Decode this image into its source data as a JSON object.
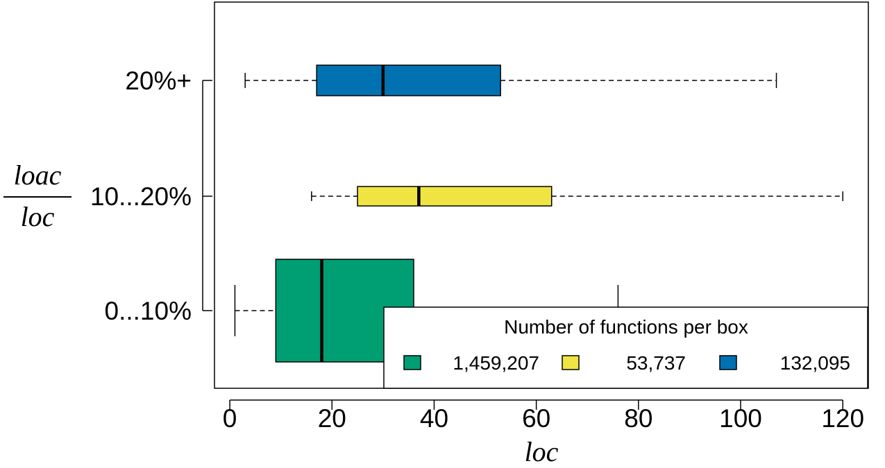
{
  "chart_data": {
    "type": "boxplot",
    "orientation": "horizontal",
    "xlabel": "loc",
    "ylabel_numerator": "loac",
    "ylabel_denominator": "loc",
    "xlim": [
      -3,
      125
    ],
    "xticks": [
      0,
      20,
      40,
      60,
      80,
      100,
      120
    ],
    "categories": [
      "0...10%",
      "10...20%",
      "20%+"
    ],
    "series": [
      {
        "category": "0...10%",
        "whisker_low": 1,
        "q1": 9,
        "median": 18,
        "q3": 36,
        "whisker_high": 76,
        "count": "1,459,207",
        "color": "#009E73"
      },
      {
        "category": "10...20%",
        "whisker_low": 16,
        "q1": 25,
        "median": 37,
        "q3": 63,
        "whisker_high": 120,
        "count": "53,737",
        "color": "#F0E442"
      },
      {
        "category": "20%+",
        "whisker_low": 3,
        "q1": 17,
        "median": 30,
        "q3": 53,
        "whisker_high": 107,
        "count": "132,095",
        "color": "#0072B2"
      }
    ],
    "legend": {
      "title": "Number of functions per box",
      "position": "bottom-right"
    },
    "grid": false
  }
}
